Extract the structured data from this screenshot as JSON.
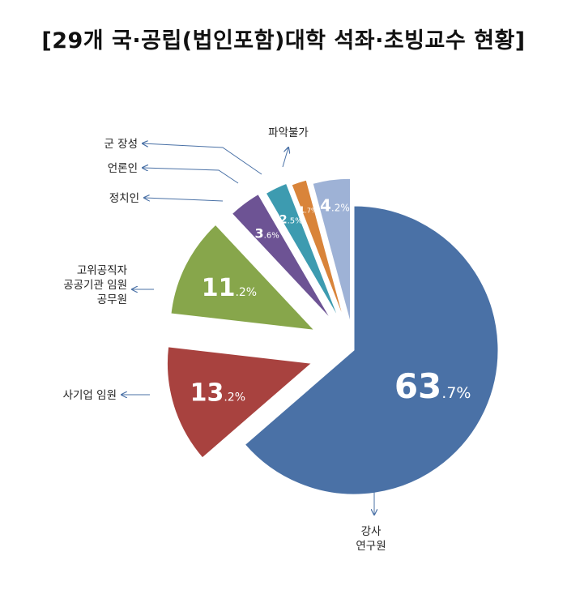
{
  "title": "[29개 국·공립(법인포함)대학 석좌·초빙교수 현황]",
  "chart_data": {
    "type": "pie",
    "title": "[29개 국·공립(법인포함)대학 석좌·초빙교수 현황]",
    "unit": "%",
    "slices": [
      {
        "label": "강사\n연구원",
        "int": "63",
        "dec": ".7",
        "value": 63.7,
        "color": "#4a71a6"
      },
      {
        "label": "사기업 임원",
        "int": "13",
        "dec": ".2",
        "value": 13.2,
        "color": "#a8423f"
      },
      {
        "label": "고위공직자\n공공기관 임원\n공무원",
        "int": "11",
        "dec": ".2",
        "value": 11.2,
        "color": "#87a64b"
      },
      {
        "label": "정치인",
        "int": "3",
        "dec": ".6",
        "value": 3.6,
        "color": "#6d5394"
      },
      {
        "label": "언론인",
        "int": "2",
        "dec": ".5",
        "value": 2.5,
        "color": "#3d9bb0"
      },
      {
        "label": "군 장성",
        "int": "1",
        "dec": ".7",
        "value": 1.7,
        "color": "#d9843a"
      },
      {
        "label": "파악불가",
        "int": "4",
        "dec": ".2",
        "value": 4.2,
        "color": "#9eb2d6"
      }
    ]
  }
}
